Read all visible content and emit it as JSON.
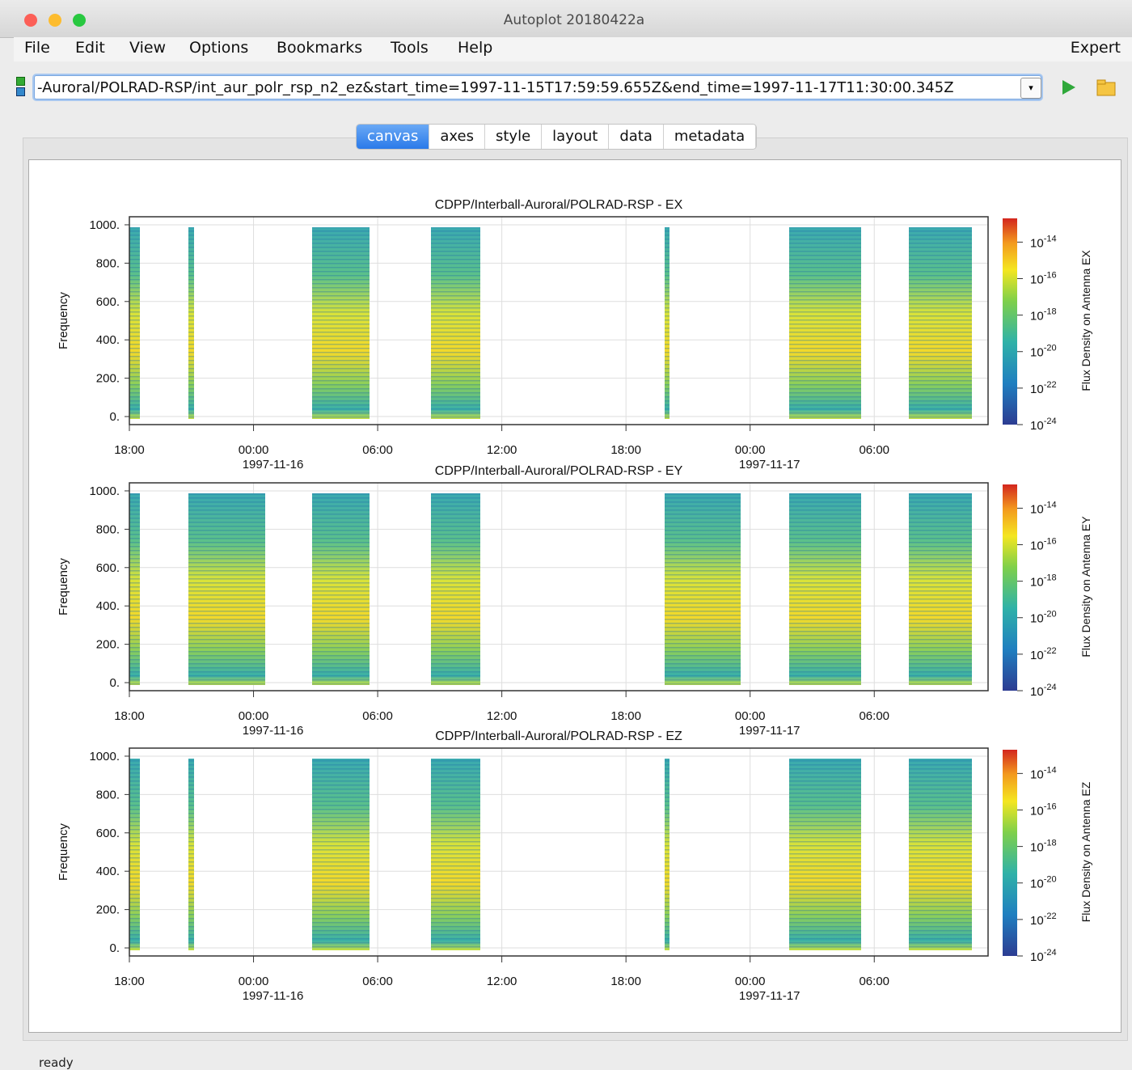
{
  "window": {
    "title": "Autoplot 20180422a"
  },
  "menu": {
    "items": [
      "File",
      "Edit",
      "View",
      "Options",
      "Bookmarks",
      "Tools",
      "Help"
    ],
    "right": "Expert"
  },
  "url": "-Auroral/POLRAD-RSP/int_aur_polr_rsp_n2_ez&start_time=1997-11-15T17:59:59.655Z&end_time=1997-11-17T11:30:00.345Z",
  "tabs": [
    "canvas",
    "axes",
    "style",
    "layout",
    "data",
    "metadata"
  ],
  "status": "ready",
  "chart_data": [
    {
      "type": "spectrogram",
      "title": "CDPP/Interball-Auroral/POLRAD-RSP - EX",
      "ylabel": "Frequency",
      "ylim": [
        -42,
        1042
      ],
      "yticks": [
        {
          "value": 0,
          "label": "0."
        },
        {
          "value": 200,
          "label": "200."
        },
        {
          "value": 400,
          "label": "400."
        },
        {
          "value": 600,
          "label": "600."
        },
        {
          "value": 800,
          "label": "800."
        },
        {
          "value": 1000,
          "label": "1000."
        }
      ],
      "xlim": [
        "1997-11-15T17:59:59.655",
        "1997-11-17T11:30:00.345"
      ],
      "xticks": [
        {
          "value": "1997-11-15T18:00",
          "label": "18:00"
        },
        {
          "value": "1997-11-16T00:00",
          "label": "00:00",
          "date": "1997-11-16"
        },
        {
          "value": "1997-11-16T06:00",
          "label": "06:00"
        },
        {
          "value": "1997-11-16T12:00",
          "label": "12:00"
        },
        {
          "value": "1997-11-16T18:00",
          "label": "18:00"
        },
        {
          "value": "1997-11-17T00:00",
          "label": "00:00",
          "date": "1997-11-17"
        },
        {
          "value": "1997-11-17T06:00",
          "label": "06:00"
        }
      ],
      "grid": true,
      "zlog": true,
      "zlim": [
        1e-24,
        2e-13
      ],
      "zticks": [
        {
          "value": 1e-14,
          "label": "10",
          "exponent": "-14"
        },
        {
          "value": 1e-16,
          "label": "10",
          "exponent": "-16"
        },
        {
          "value": 1e-18,
          "label": "10",
          "exponent": "-18"
        },
        {
          "value": 1e-20,
          "label": "10",
          "exponent": "-20"
        },
        {
          "value": 1e-22,
          "label": "10",
          "exponent": "-22"
        },
        {
          "value": 1e-24,
          "label": "10",
          "exponent": "-24"
        }
      ],
      "zlabel": "Flux Density on Antenna EX"
    },
    {
      "type": "spectrogram",
      "title": "CDPP/Interball-Auroral/POLRAD-RSP - EY",
      "ylabel": "Frequency",
      "ylim": [
        -42,
        1042
      ],
      "yticks": [
        {
          "value": 0,
          "label": "0."
        },
        {
          "value": 200,
          "label": "200."
        },
        {
          "value": 400,
          "label": "400."
        },
        {
          "value": 600,
          "label": "600."
        },
        {
          "value": 800,
          "label": "800."
        },
        {
          "value": 1000,
          "label": "1000."
        }
      ],
      "xlim": [
        "1997-11-15T17:59:59.655",
        "1997-11-17T11:30:00.345"
      ],
      "xticks": [
        {
          "value": "1997-11-15T18:00",
          "label": "18:00"
        },
        {
          "value": "1997-11-16T00:00",
          "label": "00:00",
          "date": "1997-11-16"
        },
        {
          "value": "1997-11-16T06:00",
          "label": "06:00"
        },
        {
          "value": "1997-11-16T12:00",
          "label": "12:00"
        },
        {
          "value": "1997-11-16T18:00",
          "label": "18:00"
        },
        {
          "value": "1997-11-17T00:00",
          "label": "00:00",
          "date": "1997-11-17"
        },
        {
          "value": "1997-11-17T06:00",
          "label": "06:00"
        }
      ],
      "grid": true,
      "zlog": true,
      "zlim": [
        1e-24,
        2e-13
      ],
      "zticks": [
        {
          "value": 1e-14,
          "label": "10",
          "exponent": "-14"
        },
        {
          "value": 1e-16,
          "label": "10",
          "exponent": "-16"
        },
        {
          "value": 1e-18,
          "label": "10",
          "exponent": "-18"
        },
        {
          "value": 1e-20,
          "label": "10",
          "exponent": "-20"
        },
        {
          "value": 1e-22,
          "label": "10",
          "exponent": "-22"
        },
        {
          "value": 1e-24,
          "label": "10",
          "exponent": "-24"
        }
      ],
      "zlabel": "Flux Density on Antenna EY"
    },
    {
      "type": "spectrogram",
      "title": "CDPP/Interball-Auroral/POLRAD-RSP - EZ",
      "ylabel": "Frequency",
      "ylim": [
        -42,
        1042
      ],
      "yticks": [
        {
          "value": 0,
          "label": "0."
        },
        {
          "value": 200,
          "label": "200."
        },
        {
          "value": 400,
          "label": "400."
        },
        {
          "value": 600,
          "label": "600."
        },
        {
          "value": 800,
          "label": "800."
        },
        {
          "value": 1000,
          "label": "1000."
        }
      ],
      "xlim": [
        "1997-11-15T17:59:59.655",
        "1997-11-17T11:30:00.345"
      ],
      "xticks": [
        {
          "value": "1997-11-15T18:00",
          "label": "18:00"
        },
        {
          "value": "1997-11-16T00:00",
          "label": "00:00",
          "date": "1997-11-16"
        },
        {
          "value": "1997-11-16T06:00",
          "label": "06:00"
        },
        {
          "value": "1997-11-16T12:00",
          "label": "12:00"
        },
        {
          "value": "1997-11-16T18:00",
          "label": "18:00"
        },
        {
          "value": "1997-11-17T00:00",
          "label": "00:00",
          "date": "1997-11-17"
        },
        {
          "value": "1997-11-17T06:00",
          "label": "06:00"
        }
      ],
      "grid": true,
      "zlog": true,
      "zlim": [
        1e-24,
        2e-13
      ],
      "zticks": [
        {
          "value": 1e-14,
          "label": "10",
          "exponent": "-14"
        },
        {
          "value": 1e-16,
          "label": "10",
          "exponent": "-16"
        },
        {
          "value": 1e-18,
          "label": "10",
          "exponent": "-18"
        },
        {
          "value": 1e-20,
          "label": "10",
          "exponent": "-20"
        },
        {
          "value": 1e-22,
          "label": "10",
          "exponent": "-22"
        },
        {
          "value": 1e-24,
          "label": "10",
          "exponent": "-24"
        }
      ],
      "zlabel": "Flux Density on Antenna EZ"
    }
  ]
}
